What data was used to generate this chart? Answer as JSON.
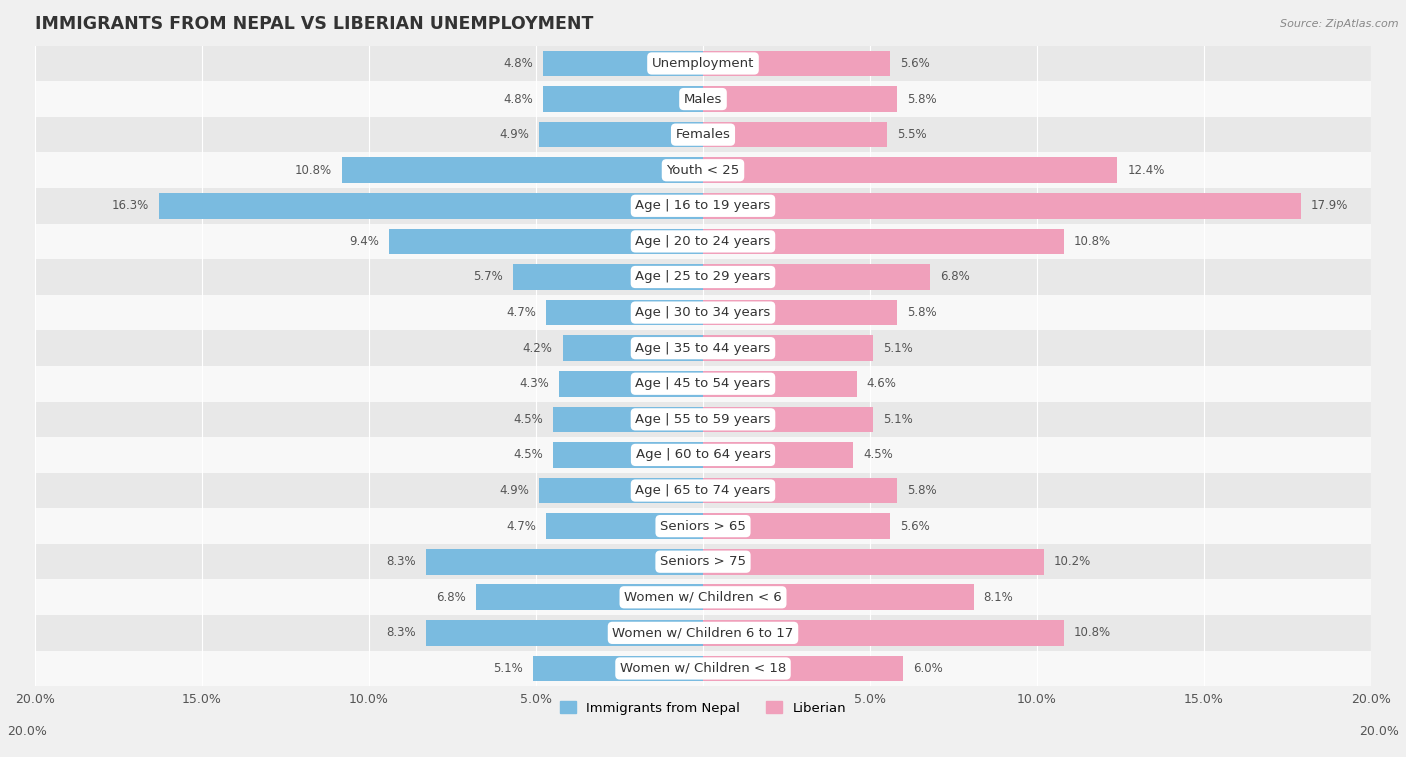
{
  "title": "IMMIGRANTS FROM NEPAL VS LIBERIAN UNEMPLOYMENT",
  "source": "Source: ZipAtlas.com",
  "categories": [
    "Unemployment",
    "Males",
    "Females",
    "Youth < 25",
    "Age | 16 to 19 years",
    "Age | 20 to 24 years",
    "Age | 25 to 29 years",
    "Age | 30 to 34 years",
    "Age | 35 to 44 years",
    "Age | 45 to 54 years",
    "Age | 55 to 59 years",
    "Age | 60 to 64 years",
    "Age | 65 to 74 years",
    "Seniors > 65",
    "Seniors > 75",
    "Women w/ Children < 6",
    "Women w/ Children 6 to 17",
    "Women w/ Children < 18"
  ],
  "nepal_values": [
    4.8,
    4.8,
    4.9,
    10.8,
    16.3,
    9.4,
    5.7,
    4.7,
    4.2,
    4.3,
    4.5,
    4.5,
    4.9,
    4.7,
    8.3,
    6.8,
    8.3,
    5.1
  ],
  "liberian_values": [
    5.6,
    5.8,
    5.5,
    12.4,
    17.9,
    10.8,
    6.8,
    5.8,
    5.1,
    4.6,
    5.1,
    4.5,
    5.8,
    5.6,
    10.2,
    8.1,
    10.8,
    6.0
  ],
  "nepal_color": "#7abbe0",
  "liberian_color": "#f0a0bb",
  "nepal_label": "Immigrants from Nepal",
  "liberian_label": "Liberian",
  "xlim": 20.0,
  "bar_height": 0.72,
  "background_color": "#f0f0f0",
  "row_even_color": "#e8e8e8",
  "row_odd_color": "#f8f8f8",
  "title_fontsize": 12.5,
  "label_fontsize": 9.5,
  "value_fontsize": 8.5,
  "axis_fontsize": 9,
  "legend_fontsize": 9.5
}
